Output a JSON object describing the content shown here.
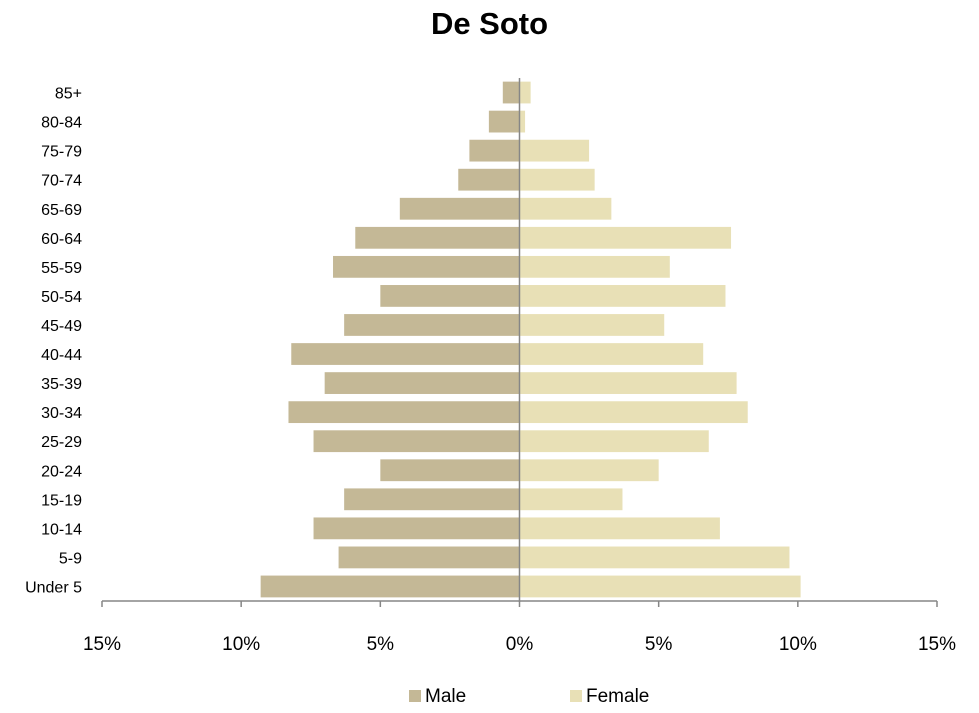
{
  "chart_data": {
    "type": "bar",
    "orientation": "horizontal",
    "title": "De Soto",
    "categories": [
      "Under 5",
      "5-9",
      "10-14",
      "15-19",
      "20-24",
      "25-29",
      "30-34",
      "35-39",
      "40-44",
      "45-49",
      "50-54",
      "55-59",
      "60-64",
      "65-69",
      "70-74",
      "75-79",
      "80-84",
      "85+"
    ],
    "series": [
      {
        "name": "Male",
        "color": "#C4B896",
        "values": [
          -9.3,
          -6.5,
          -7.4,
          -6.3,
          -5.0,
          -7.4,
          -8.3,
          -7.0,
          -8.2,
          -6.3,
          -5.0,
          -6.7,
          -5.9,
          -4.3,
          -2.2,
          -1.8,
          -1.1,
          -0.6
        ]
      },
      {
        "name": "Female",
        "color": "#E8E0B6",
        "values": [
          10.1,
          9.7,
          7.2,
          3.7,
          5.0,
          6.8,
          8.2,
          7.8,
          6.6,
          5.2,
          7.4,
          5.4,
          7.6,
          3.3,
          2.7,
          2.5,
          0.2,
          0.4
        ]
      }
    ],
    "xlim": [
      -15,
      15
    ],
    "xticks": [
      -15,
      -10,
      -5,
      0,
      5,
      10,
      15
    ],
    "xtick_labels": [
      "15%",
      "10%",
      "5%",
      "0%",
      "5%",
      "10%",
      "15%"
    ],
    "grid": false,
    "legend_position": "bottom"
  }
}
